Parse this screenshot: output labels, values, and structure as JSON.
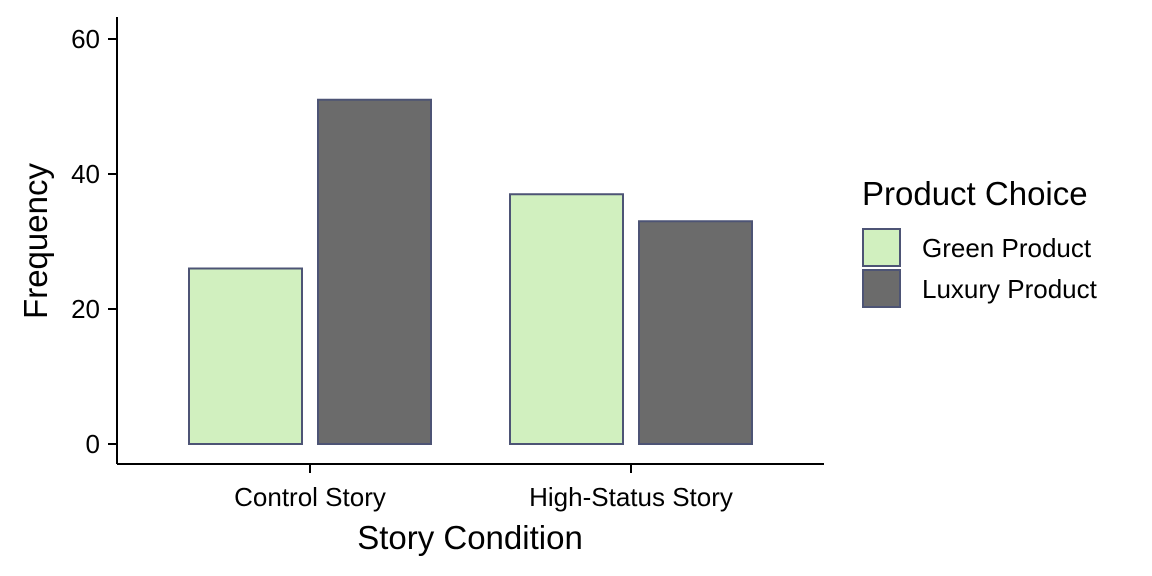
{
  "chart_data": {
    "type": "bar",
    "categories": [
      "Control Story",
      "High-Status Story"
    ],
    "series": [
      {
        "name": "Green Product",
        "values": [
          26,
          37
        ],
        "color": "#d1f0bf"
      },
      {
        "name": "Luxury Product",
        "values": [
          51,
          33
        ],
        "color": "#6b6b6b"
      }
    ],
    "bar_border_color": "#4d5475",
    "xlabel": "Story Condition",
    "ylabel": "Frequency",
    "ylim": [
      0,
      60
    ],
    "yticks": [
      "0",
      "20",
      "40",
      "60"
    ],
    "grid": false,
    "legend": {
      "title": "Product Choice",
      "placement": "right"
    }
  }
}
